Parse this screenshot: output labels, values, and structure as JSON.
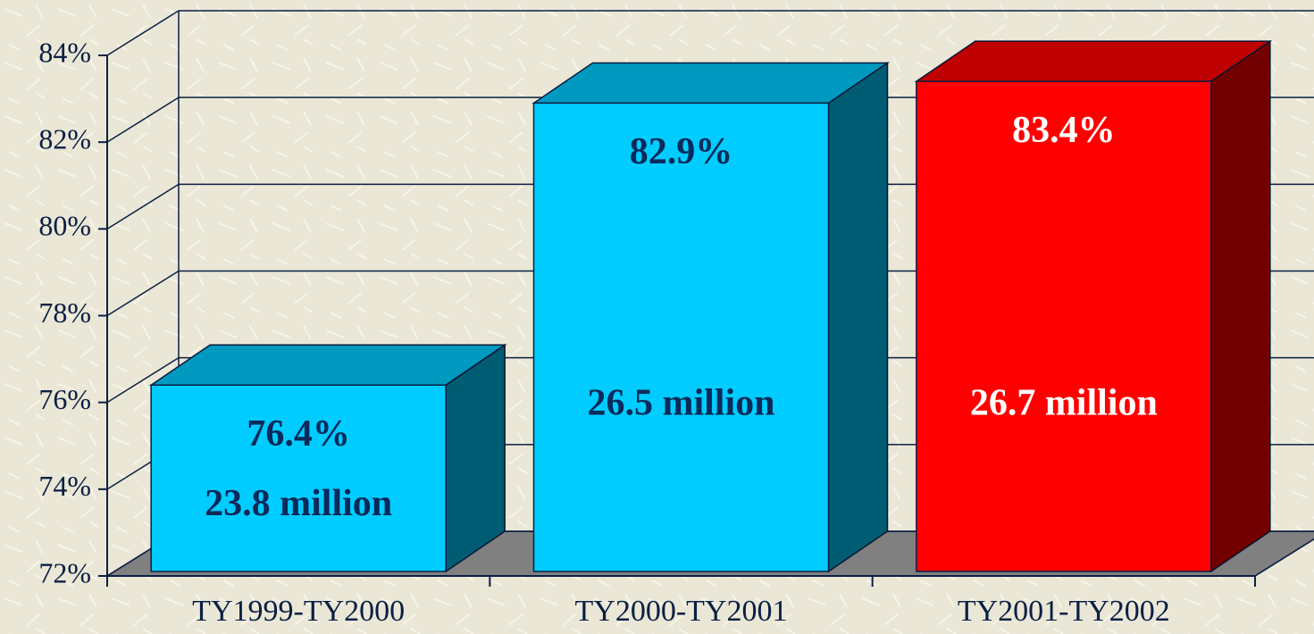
{
  "chart_data": {
    "type": "bar3d",
    "categories": [
      "TY1999-TY2000",
      "TY2000-TY2001",
      "TY2001-TY2002"
    ],
    "values": [
      76.4,
      82.9,
      83.4
    ],
    "value_labels": [
      "76.4%",
      "82.9%",
      "83.4%"
    ],
    "annotations": [
      "23.8 million",
      "26.5 million",
      "26.7 million"
    ],
    "colors": [
      "#00ccff",
      "#00ccff",
      "#ff0000"
    ],
    "label_colors": [
      "#0a2a5a",
      "#0a2a5a",
      "#ffffff"
    ],
    "ylim": [
      72,
      84
    ],
    "yticks": [
      {
        "value": 72,
        "label": "72%"
      },
      {
        "value": 74,
        "label": "74%"
      },
      {
        "value": 76,
        "label": "76%"
      },
      {
        "value": 78,
        "label": "78%"
      },
      {
        "value": 80,
        "label": "80%"
      },
      {
        "value": 82,
        "label": "82%"
      },
      {
        "value": 84,
        "label": "84%"
      }
    ],
    "grid": true
  }
}
